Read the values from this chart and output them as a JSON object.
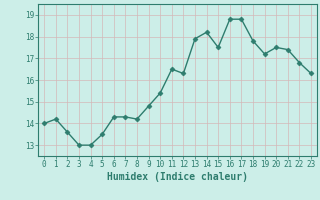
{
  "x": [
    0,
    1,
    2,
    3,
    4,
    5,
    6,
    7,
    8,
    9,
    10,
    11,
    12,
    13,
    14,
    15,
    16,
    17,
    18,
    19,
    20,
    21,
    22,
    23
  ],
  "y": [
    14.0,
    14.2,
    13.6,
    13.0,
    13.0,
    13.5,
    14.3,
    14.3,
    14.2,
    14.8,
    15.4,
    16.5,
    16.3,
    17.9,
    18.2,
    17.5,
    18.8,
    18.8,
    17.8,
    17.2,
    17.5,
    17.4,
    16.8,
    16.3
  ],
  "line_color": "#2e7d6e",
  "marker": "D",
  "marker_size": 2.5,
  "bg_color": "#cceee8",
  "grid_color": "#d4b8b8",
  "xlabel": "Humidex (Indice chaleur)",
  "xlabel_fontsize": 7,
  "xlim": [
    -0.5,
    23.5
  ],
  "ylim": [
    12.5,
    19.5
  ],
  "yticks": [
    13,
    14,
    15,
    16,
    17,
    18,
    19
  ],
  "xticks": [
    0,
    1,
    2,
    3,
    4,
    5,
    6,
    7,
    8,
    9,
    10,
    11,
    12,
    13,
    14,
    15,
    16,
    17,
    18,
    19,
    20,
    21,
    22,
    23
  ],
  "tick_fontsize": 5.5,
  "line_width": 1.0,
  "axis_color": "#2e7d6e"
}
